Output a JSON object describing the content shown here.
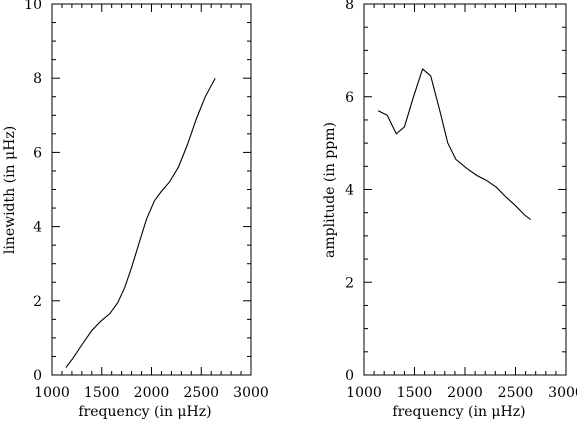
{
  "chart_data": [
    {
      "type": "line",
      "xlabel": "frequency (in μHz)",
      "ylabel": "linewidth (in μHz)",
      "xlim": [
        1000,
        3000
      ],
      "ylim": [
        0,
        10
      ],
      "xticks": [
        1000,
        1500,
        2000,
        2500,
        3000
      ],
      "yticks": [
        0,
        2,
        4,
        6,
        8,
        10
      ],
      "x": [
        1140,
        1210,
        1310,
        1400,
        1490,
        1580,
        1660,
        1730,
        1800,
        1880,
        1950,
        2030,
        2100,
        2180,
        2270,
        2360,
        2450,
        2540,
        2640
      ],
      "values": [
        0.2,
        0.45,
        0.85,
        1.2,
        1.45,
        1.65,
        1.95,
        2.35,
        2.9,
        3.6,
        4.2,
        4.7,
        4.95,
        5.2,
        5.6,
        6.2,
        6.9,
        7.5,
        8.0
      ]
    },
    {
      "type": "line",
      "xlabel": "frequency (in μHz)",
      "ylabel": "amplitude (in ppm)",
      "xlim": [
        1000,
        3000
      ],
      "ylim": [
        0,
        8
      ],
      "xticks": [
        1000,
        1500,
        2000,
        2500,
        3000
      ],
      "yticks": [
        0,
        2,
        4,
        6,
        8
      ],
      "x": [
        1140,
        1230,
        1320,
        1400,
        1490,
        1580,
        1660,
        1750,
        1830,
        1910,
        2020,
        2120,
        2210,
        2310,
        2400,
        2500,
        2590,
        2650
      ],
      "values": [
        5.7,
        5.6,
        5.2,
        5.35,
        6.0,
        6.6,
        6.45,
        5.7,
        5.0,
        4.65,
        4.45,
        4.3,
        4.2,
        4.05,
        3.85,
        3.65,
        3.45,
        3.35
      ]
    }
  ]
}
